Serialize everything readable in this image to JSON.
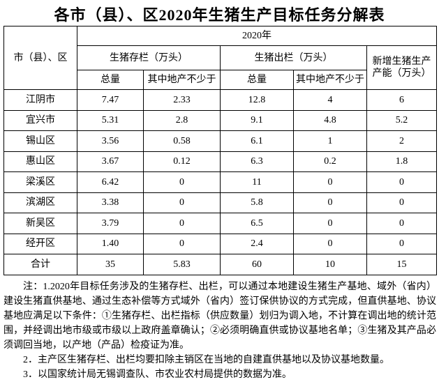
{
  "title": "各市（县）、区2020年生猪生产目标任务分解表",
  "table": {
    "year": "2020年",
    "region_header": "市（县）、区",
    "groups": [
      "生猪存栏（万头）",
      "生猪出栏（万头）",
      "新增生猪生产产能（万头）"
    ],
    "subheaders": [
      "总量",
      "其中地产不少于",
      "总量",
      "其中地产不少于"
    ],
    "rows": [
      [
        "江阴市",
        "7.47",
        "2.33",
        "12.8",
        "4",
        "6"
      ],
      [
        "宜兴市",
        "5.31",
        "2.8",
        "9.1",
        "4.8",
        "5.2"
      ],
      [
        "锡山区",
        "3.56",
        "0.58",
        "6.1",
        "1",
        "2"
      ],
      [
        "惠山区",
        "3.67",
        "0.12",
        "6.3",
        "0.2",
        "1.8"
      ],
      [
        "梁溪区",
        "6.42",
        "0",
        "11",
        "0",
        "0"
      ],
      [
        "滨湖区",
        "3.38",
        "0",
        "5.8",
        "0",
        "0"
      ],
      [
        "新吴区",
        "3.79",
        "0",
        "6.5",
        "0",
        "0"
      ],
      [
        "经开区",
        "1.40",
        "0",
        "2.4",
        "0",
        "0"
      ],
      [
        "合计",
        "35",
        "5.83",
        "60",
        "10",
        "15"
      ]
    ]
  },
  "notes": [
    "注：1.2020年目标任务涉及的生猪存栏、出栏，可以通过本地建设生猪生产基地、域外（省内）建设生猪直供基地、通过生态补偿等方式域外（省内）签订保供协议的方式完成，但直供基地、协议基地应满足以下条件：①生猪存栏、出栏指标（供应数量）划归为调入地，不计算在调出地的统计范围，并经调出地市级或市级以上政府盖章确认；②必须明确直供或协议基地名单；③生猪及其产品必须调回当地，以产地（产品）检疫证为准。",
    "2．主产区生猪存栏、出栏均要扣除主销区在当地的自建直供基地以及协议基地数量。",
    "3．以国家统计局无锡调查队、市农业农村局提供的数据为准。"
  ]
}
